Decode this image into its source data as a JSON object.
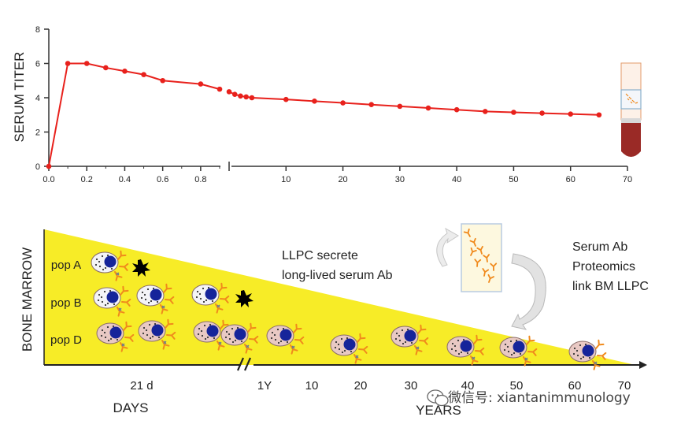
{
  "chart_data": {
    "type": "line",
    "ylabel": "SERUM TITER",
    "ylim": [
      0,
      8
    ],
    "yticks": [
      "0",
      "2",
      "4",
      "6",
      "8"
    ],
    "left_panel": {
      "xlim": [
        0.0,
        0.9
      ],
      "xticks": [
        "0.0",
        "0.2",
        "0.4",
        "0.6",
        "0.8"
      ],
      "x": [
        0.0,
        0.1,
        0.2,
        0.3,
        0.4,
        0.5,
        0.6,
        0.8,
        0.9
      ],
      "y": [
        0.0,
        6.0,
        6.0,
        5.75,
        5.55,
        5.35,
        5.0,
        4.8,
        4.5
      ]
    },
    "right_panel": {
      "xlim": [
        0,
        70
      ],
      "xticks": [
        "10",
        "20",
        "30",
        "40",
        "50",
        "60",
        "70"
      ],
      "x": [
        0,
        1,
        2,
        3,
        4,
        10,
        15,
        20,
        25,
        30,
        35,
        40,
        45,
        50,
        55,
        60,
        65
      ],
      "y": [
        4.35,
        4.2,
        4.1,
        4.05,
        4.0,
        3.9,
        3.8,
        3.7,
        3.6,
        3.5,
        3.4,
        3.3,
        3.2,
        3.15,
        3.1,
        3.05,
        3.0
      ]
    },
    "line_color": "#e8211c"
  },
  "diagram": {
    "side_label": "BONE MARROW",
    "triangle_color": "#f7ec27",
    "populations": [
      "pop A",
      "pop B",
      "pop D"
    ],
    "note_left": [
      "LLPC secrete",
      "long-lived serum Ab"
    ],
    "note_right": [
      "Serum Ab",
      "Proteomics",
      "link BM LLPC"
    ],
    "days_ticks": [
      "21 d"
    ],
    "days_label": "DAYS",
    "years_ticks": [
      "1Y",
      "10",
      "20",
      "30",
      "40",
      "50",
      "60",
      "70"
    ],
    "years_label": "YEARS",
    "watermark": "微信号: xiantanimmunology"
  },
  "colors": {
    "nucleus": "#16249a",
    "cell_body": "#e9c9c4",
    "antibody": "#f08a1c",
    "apoptotic": "#000000"
  }
}
